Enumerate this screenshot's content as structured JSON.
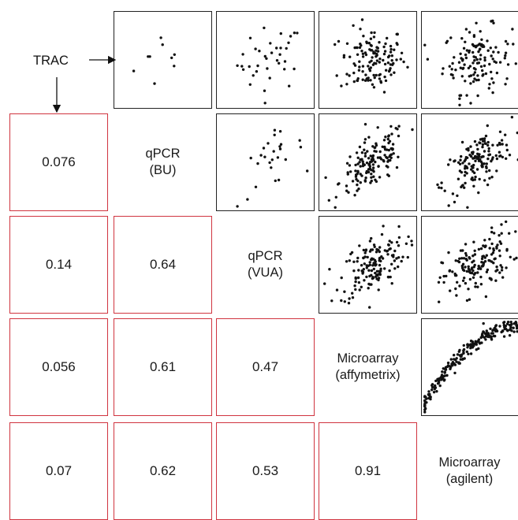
{
  "chart_data": {
    "type": "scatter",
    "layout": "correlation-matrix",
    "variables": [
      {
        "line1": "TRAC",
        "line2": ""
      },
      {
        "line1": "qPCR",
        "line2": "(BU)"
      },
      {
        "line1": "qPCR",
        "line2": "(VUA)"
      },
      {
        "line1": "Microarray",
        "line2": "(affymetrix)"
      },
      {
        "line1": "Microarray",
        "line2": "(agilent)"
      }
    ],
    "correlations": [
      {
        "row": 1,
        "col": 0,
        "value": "0.076"
      },
      {
        "row": 2,
        "col": 0,
        "value": "0.14"
      },
      {
        "row": 2,
        "col": 1,
        "value": "0.64"
      },
      {
        "row": 3,
        "col": 0,
        "value": "0.056"
      },
      {
        "row": 3,
        "col": 1,
        "value": "0.61"
      },
      {
        "row": 3,
        "col": 2,
        "value": "0.47"
      },
      {
        "row": 4,
        "col": 0,
        "value": "0.07"
      },
      {
        "row": 4,
        "col": 1,
        "value": "0.62"
      },
      {
        "row": 4,
        "col": 2,
        "value": "0.53"
      },
      {
        "row": 4,
        "col": 3,
        "value": "0.91"
      }
    ],
    "scatter_panels": [
      {
        "row": 0,
        "col": 1,
        "points": 9,
        "r": 0.076
      },
      {
        "row": 0,
        "col": 2,
        "points": 36,
        "r": 0.14
      },
      {
        "row": 0,
        "col": 3,
        "points": 130,
        "r": 0.056
      },
      {
        "row": 0,
        "col": 4,
        "points": 130,
        "r": 0.07
      },
      {
        "row": 1,
        "col": 2,
        "points": 26,
        "r": 0.64
      },
      {
        "row": 1,
        "col": 3,
        "points": 150,
        "r": 0.61
      },
      {
        "row": 1,
        "col": 4,
        "points": 150,
        "r": 0.62
      },
      {
        "row": 2,
        "col": 3,
        "points": 150,
        "r": 0.47
      },
      {
        "row": 2,
        "col": 4,
        "points": 150,
        "r": 0.53
      },
      {
        "row": 3,
        "col": 4,
        "points": 220,
        "r": 0.91
      }
    ],
    "colors": {
      "scatter_border": "#222222",
      "correlation_border": "#d0343f",
      "point": "#111111"
    },
    "grid": false
  }
}
